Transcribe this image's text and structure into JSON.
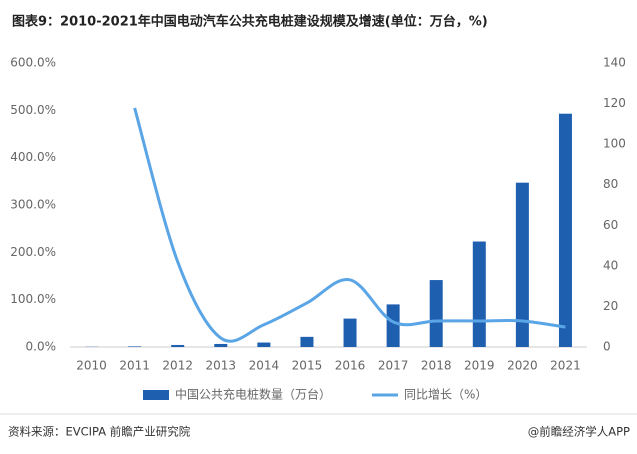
{
  "chart_data": {
    "type": "bar_line",
    "title": "图表9：2010-2021年中国电动汽车公共充电桩建设规模及增速(单位：万台，%)",
    "categories": [
      "2010",
      "2011",
      "2012",
      "2013",
      "2014",
      "2015",
      "2016",
      "2017",
      "2018",
      "2019",
      "2020",
      "2021"
    ],
    "series": [
      {
        "name": "中国公共充电桩数量（万台）",
        "type": "bar",
        "axis": "y2",
        "color": "#1f5fb0",
        "values": [
          0.1,
          0.3,
          1.0,
          1.5,
          2.2,
          5,
          14,
          21,
          33,
          52,
          81,
          115
        ]
      },
      {
        "name": "同比增长（%）",
        "type": "line",
        "axis": "y",
        "color": "#5aa5e6",
        "values": [
          null,
          505,
          180,
          19,
          47,
          93,
          142,
          53,
          55,
          55,
          55,
          42
        ]
      }
    ],
    "ylim": [
      0,
      600
    ],
    "yticks": [
      {
        "value": 0,
        "label": "0.0%"
      },
      {
        "value": 100,
        "label": "100.0%"
      },
      {
        "value": 200,
        "label": "200.0%"
      },
      {
        "value": 300,
        "label": "300.0%"
      },
      {
        "value": 400,
        "label": "400.0%"
      },
      {
        "value": 500,
        "label": "500.0%"
      },
      {
        "value": 600,
        "label": "600.0%"
      }
    ],
    "y2lim": [
      0,
      140
    ],
    "y2ticks": [
      0,
      20,
      40,
      60,
      80,
      100,
      120,
      140
    ],
    "source": "资料来源：EVCIPA 前瞻产业研究院",
    "credit": "@前瞻经济学人APP"
  }
}
